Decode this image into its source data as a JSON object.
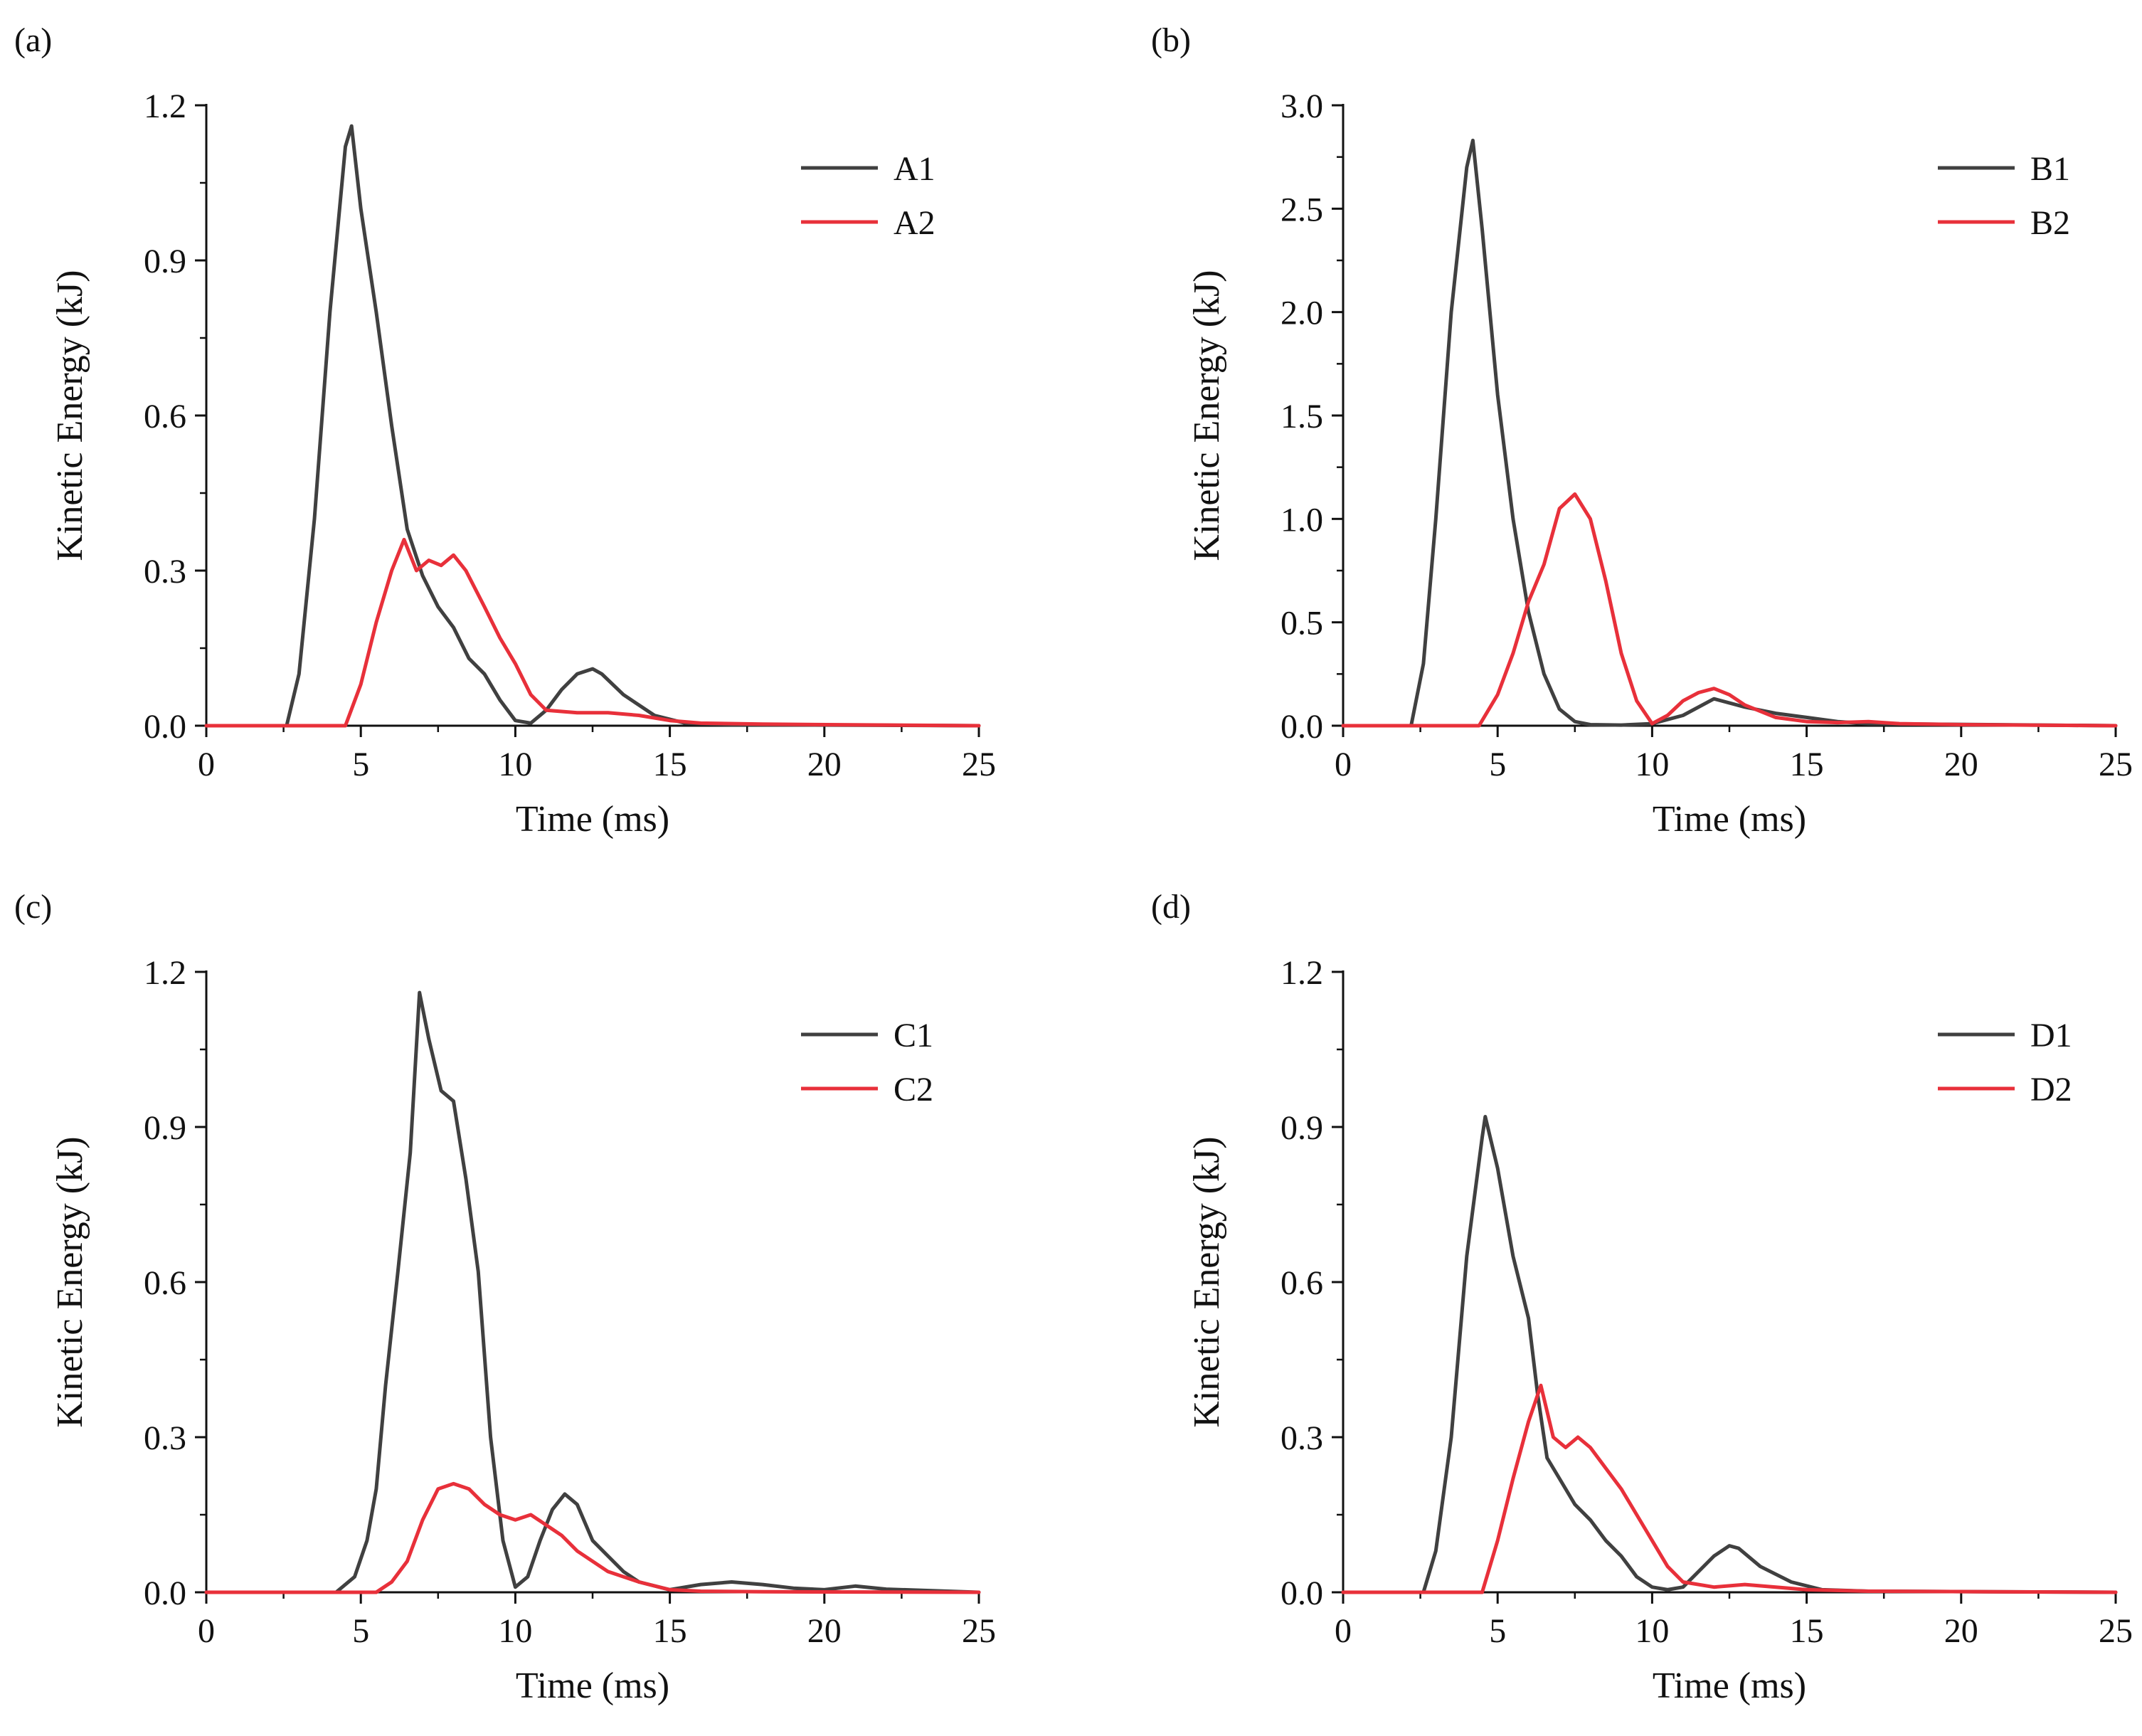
{
  "chart_data": [
    {
      "panel_label": "(a)",
      "type": "line",
      "title": "",
      "xlabel": "Time (ms)",
      "ylabel": "Kinetic Energy (kJ)",
      "xlim": [
        0,
        25
      ],
      "ylim": [
        0,
        1.2
      ],
      "xticks": [
        "0",
        "5",
        "10",
        "15",
        "20",
        "25"
      ],
      "yticks": [
        "0.0",
        "0.3",
        "0.6",
        "0.9",
        "1.2"
      ],
      "legend_position": "top-right",
      "series": [
        {
          "name": "A1",
          "color": "#404040",
          "x": [
            0,
            2.6,
            3.0,
            3.5,
            4.0,
            4.5,
            4.7,
            5.0,
            5.5,
            6.0,
            6.5,
            7.0,
            7.5,
            8.0,
            8.5,
            9.0,
            9.5,
            10.0,
            10.5,
            11.0,
            11.5,
            12.0,
            12.5,
            12.8,
            13.5,
            14.5,
            15.5,
            17,
            25
          ],
          "y": [
            0,
            0,
            0.1,
            0.4,
            0.8,
            1.12,
            1.16,
            1.0,
            0.8,
            0.58,
            0.38,
            0.29,
            0.23,
            0.19,
            0.13,
            0.1,
            0.05,
            0.01,
            0.005,
            0.03,
            0.07,
            0.1,
            0.11,
            0.1,
            0.06,
            0.02,
            0.005,
            0.002,
            0
          ]
        },
        {
          "name": "A2",
          "color": "#e8303a",
          "x": [
            0,
            4.5,
            5.0,
            5.5,
            6.0,
            6.4,
            6.8,
            7.2,
            7.6,
            8.0,
            8.4,
            9.0,
            9.5,
            10.0,
            10.5,
            11.0,
            12.0,
            13.0,
            14.0,
            15.0,
            16.0,
            18.0,
            25
          ],
          "y": [
            0,
            0,
            0.08,
            0.2,
            0.3,
            0.36,
            0.3,
            0.32,
            0.31,
            0.33,
            0.3,
            0.23,
            0.17,
            0.12,
            0.06,
            0.03,
            0.025,
            0.025,
            0.02,
            0.01,
            0.005,
            0.003,
            0
          ]
        }
      ]
    },
    {
      "panel_label": "(b)",
      "type": "line",
      "title": "",
      "xlabel": "Time (ms)",
      "ylabel": "Kinetic Energy (kJ)",
      "xlim": [
        0,
        25
      ],
      "ylim": [
        0,
        3.0
      ],
      "xticks": [
        "0",
        "5",
        "10",
        "15",
        "20",
        "25"
      ],
      "yticks": [
        "0.0",
        "0.5",
        "1.0",
        "1.5",
        "2.0",
        "2.5",
        "3.0"
      ],
      "legend_position": "top-right",
      "series": [
        {
          "name": "B1",
          "color": "#404040",
          "x": [
            0,
            2.2,
            2.6,
            3.0,
            3.5,
            4.0,
            4.2,
            4.5,
            5.0,
            5.5,
            6.0,
            6.5,
            7.0,
            7.5,
            8.0,
            9.0,
            10.0,
            11.0,
            12.0,
            13.0,
            14.0,
            15.0,
            16.0,
            17.0,
            25
          ],
          "y": [
            0,
            0,
            0.3,
            1.0,
            2.0,
            2.7,
            2.83,
            2.4,
            1.6,
            1.0,
            0.55,
            0.25,
            0.08,
            0.02,
            0.005,
            0.003,
            0.01,
            0.05,
            0.13,
            0.09,
            0.06,
            0.04,
            0.02,
            0.01,
            0
          ]
        },
        {
          "name": "B2",
          "color": "#e8303a",
          "x": [
            0,
            4.4,
            5.0,
            5.5,
            6.0,
            6.5,
            7.0,
            7.5,
            8.0,
            8.5,
            9.0,
            9.5,
            10.0,
            10.5,
            11.0,
            11.5,
            12.0,
            12.5,
            13.0,
            14.0,
            15.0,
            16.0,
            17.0,
            18.0,
            20.0,
            25
          ],
          "y": [
            0,
            0,
            0.15,
            0.35,
            0.6,
            0.78,
            1.05,
            1.12,
            1.0,
            0.7,
            0.35,
            0.12,
            0.01,
            0.05,
            0.12,
            0.16,
            0.18,
            0.15,
            0.1,
            0.04,
            0.02,
            0.015,
            0.02,
            0.01,
            0.005,
            0
          ]
        }
      ]
    },
    {
      "panel_label": "(c)",
      "type": "line",
      "title": "",
      "xlabel": "Time (ms)",
      "ylabel": "Kinetic Energy (kJ)",
      "xlim": [
        0,
        25
      ],
      "ylim": [
        0,
        1.2
      ],
      "xticks": [
        "0",
        "5",
        "10",
        "15",
        "20",
        "25"
      ],
      "yticks": [
        "0.0",
        "0.3",
        "0.6",
        "0.9",
        "1.2"
      ],
      "legend_position": "top-right",
      "series": [
        {
          "name": "C1",
          "color": "#404040",
          "x": [
            0,
            4.2,
            4.8,
            5.2,
            5.5,
            5.8,
            6.2,
            6.6,
            6.9,
            7.2,
            7.6,
            8.0,
            8.4,
            8.8,
            9.2,
            9.6,
            10.0,
            10.4,
            10.8,
            11.2,
            11.6,
            12.0,
            12.5,
            13.0,
            13.5,
            14.0,
            15.0,
            16.0,
            17.0,
            18.0,
            19.0,
            20.0,
            21.0,
            22.0,
            25
          ],
          "y": [
            0,
            0,
            0.03,
            0.1,
            0.2,
            0.4,
            0.62,
            0.85,
            1.16,
            1.07,
            0.97,
            0.95,
            0.8,
            0.62,
            0.3,
            0.1,
            0.01,
            0.03,
            0.1,
            0.16,
            0.19,
            0.17,
            0.1,
            0.07,
            0.04,
            0.02,
            0.005,
            0.015,
            0.02,
            0.015,
            0.008,
            0.005,
            0.012,
            0.006,
            0
          ]
        },
        {
          "name": "C2",
          "color": "#e8303a",
          "x": [
            0,
            5.5,
            6.0,
            6.5,
            7.0,
            7.5,
            8.0,
            8.5,
            9.0,
            9.5,
            10.0,
            10.5,
            11.0,
            11.5,
            12.0,
            12.5,
            13.0,
            14.0,
            15.0,
            16.0,
            18.0,
            25
          ],
          "y": [
            0,
            0,
            0.02,
            0.06,
            0.14,
            0.2,
            0.21,
            0.2,
            0.17,
            0.15,
            0.14,
            0.15,
            0.13,
            0.11,
            0.08,
            0.06,
            0.04,
            0.02,
            0.005,
            0.002,
            0.001,
            0
          ]
        }
      ]
    },
    {
      "panel_label": "(d)",
      "type": "line",
      "title": "",
      "xlabel": "Time (ms)",
      "ylabel": "Kinetic Energy (kJ)",
      "xlim": [
        0,
        25
      ],
      "ylim": [
        0,
        1.2
      ],
      "xticks": [
        "0",
        "5",
        "10",
        "15",
        "20",
        "25"
      ],
      "yticks": [
        "0.0",
        "0.3",
        "0.6",
        "0.9",
        "1.2"
      ],
      "legend_position": "top-right",
      "series": [
        {
          "name": "D1",
          "color": "#404040",
          "x": [
            0,
            2.6,
            3.0,
            3.5,
            4.0,
            4.5,
            4.6,
            5.0,
            5.5,
            6.0,
            6.3,
            6.6,
            7.0,
            7.5,
            8.0,
            8.5,
            9.0,
            9.5,
            10.0,
            10.5,
            11.0,
            11.5,
            12.0,
            12.5,
            12.8,
            13.5,
            14.5,
            15.5,
            17,
            25
          ],
          "y": [
            0,
            0,
            0.08,
            0.3,
            0.65,
            0.88,
            0.92,
            0.82,
            0.65,
            0.53,
            0.38,
            0.26,
            0.22,
            0.17,
            0.14,
            0.1,
            0.07,
            0.03,
            0.01,
            0.005,
            0.01,
            0.04,
            0.07,
            0.09,
            0.085,
            0.05,
            0.02,
            0.005,
            0.002,
            0
          ]
        },
        {
          "name": "D2",
          "color": "#e8303a",
          "x": [
            0,
            4.5,
            5.0,
            5.5,
            6.0,
            6.4,
            6.8,
            7.2,
            7.6,
            8.0,
            8.5,
            9.0,
            9.5,
            10.0,
            10.5,
            11.0,
            12.0,
            13.0,
            14.0,
            15.0,
            17.0,
            25
          ],
          "y": [
            0,
            0,
            0.1,
            0.22,
            0.33,
            0.4,
            0.3,
            0.28,
            0.3,
            0.28,
            0.24,
            0.2,
            0.15,
            0.1,
            0.05,
            0.02,
            0.01,
            0.015,
            0.01,
            0.005,
            0.002,
            0
          ]
        }
      ]
    }
  ]
}
